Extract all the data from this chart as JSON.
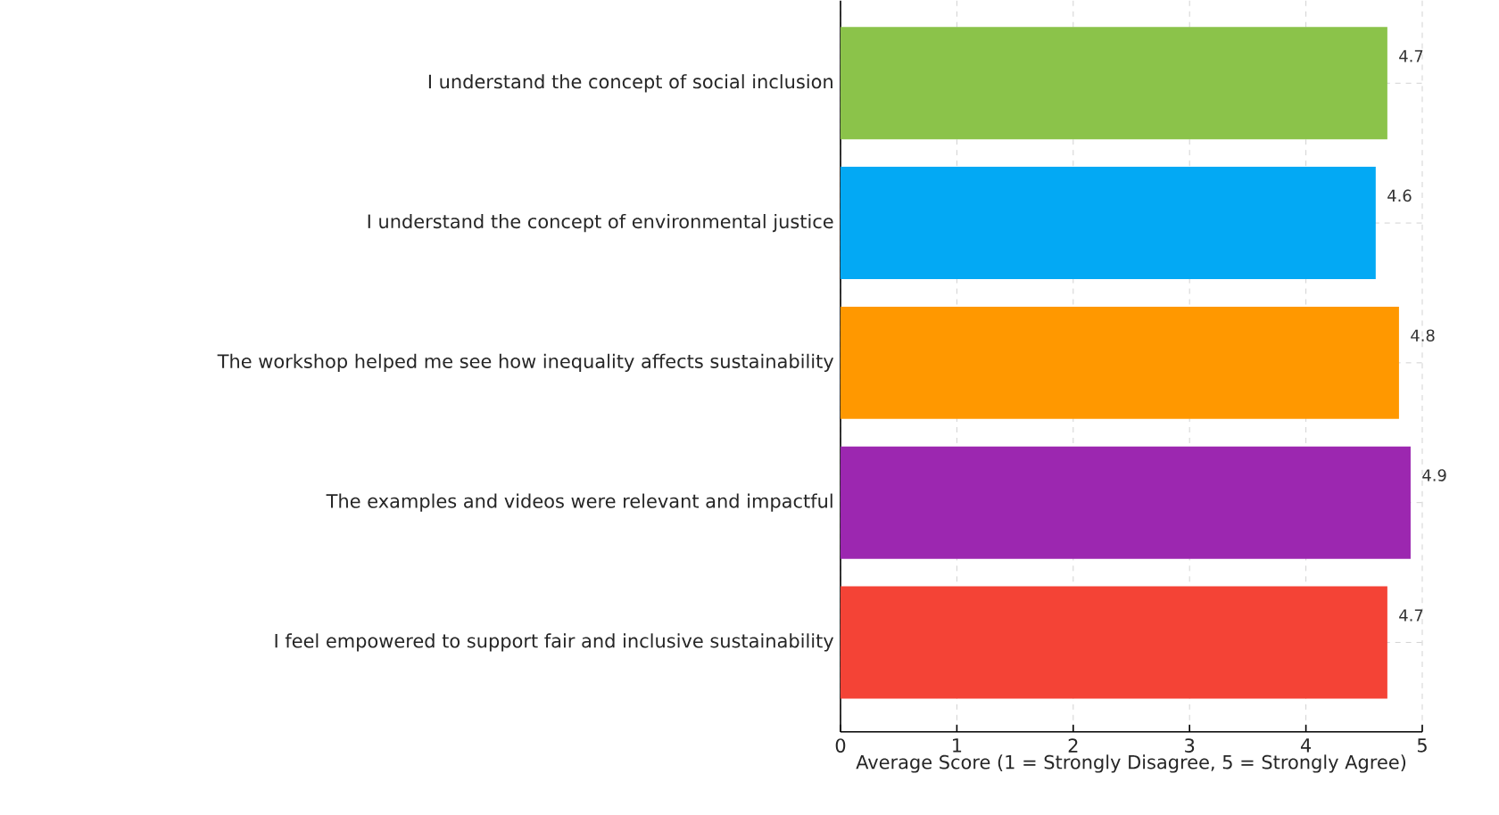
{
  "chart_data": {
    "type": "bar",
    "orientation": "horizontal",
    "categories": [
      "I understand the concept of social inclusion",
      "I understand the concept of environmental justice",
      "The workshop helped me see how inequality affects sustainability",
      "The examples and videos were relevant and impactful",
      "I feel empowered to support fair and inclusive sustainability"
    ],
    "values": [
      4.7,
      4.6,
      4.8,
      4.9,
      4.7
    ],
    "colors": [
      "#8bc34a",
      "#03a9f4",
      "#ff9800",
      "#9c27b0",
      "#f44336"
    ],
    "xlabel": "Average Score (1 = Strongly Disagree, 5 = Strongly Agree)",
    "xlim": [
      0,
      5
    ],
    "xticks": [
      0,
      1,
      2,
      3,
      4,
      5
    ],
    "grid": true,
    "data_labels": true
  }
}
